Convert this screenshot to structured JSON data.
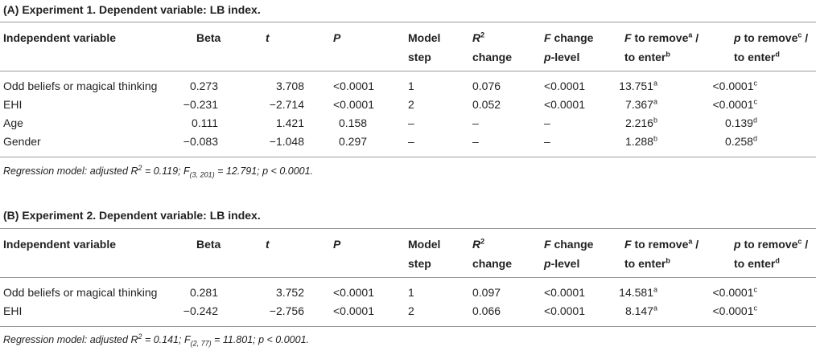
{
  "exp1": {
    "title": "(A) Experiment 1. Dependent variable: LB index.",
    "headers": {
      "iv": "Independent variable",
      "beta": "Beta",
      "t": "t",
      "p": "P",
      "model_step_1": "Model",
      "model_step_2": "step",
      "r2_sym": "R",
      "r2_exp": "2",
      "r2_line2": "change",
      "fchange_1a": "F",
      "fchange_1b": " change",
      "fchange_2a": "p",
      "fchange_2b": "-level",
      "ftr_1a": "F",
      "ftr_1b": " to remove",
      "ftr_sup_a": "a",
      "ftr_1c": " /",
      "ftr_2a": "to enter",
      "ftr_sup_b": "b",
      "ptr_1a": "p",
      "ptr_1b": " to remove",
      "ptr_sup_c": "c",
      "ptr_1c": " /",
      "ptr_2a": "to enter",
      "ptr_sup_d": "d"
    },
    "rows": [
      {
        "iv": "Odd beliefs or magical thinking",
        "beta": "0.273",
        "t": "3.708",
        "p": "<0.0001",
        "step": "1",
        "r2": "0.076",
        "fchg": "<0.0001",
        "ftr": "13.751",
        "ftr_sup": "a",
        "ptr": "<0.0001",
        "ptr_sup": "c"
      },
      {
        "iv": "EHI",
        "beta": "−0.231",
        "t": "−2.714",
        "p": "<0.0001",
        "step": "2",
        "r2": "0.052",
        "fchg": "<0.0001",
        "ftr": "7.367",
        "ftr_sup": "a",
        "ptr": "<0.0001",
        "ptr_sup": "c"
      },
      {
        "iv": "Age",
        "beta": "0.111",
        "t": "1.421",
        "p": "0.158",
        "step": "–",
        "r2": "–",
        "fchg": "–",
        "ftr": "2.216",
        "ftr_sup": "b",
        "ptr": "0.139",
        "ptr_sup": "d"
      },
      {
        "iv": "Gender",
        "beta": "−0.083",
        "t": "−1.048",
        "p": "0.297",
        "step": "–",
        "r2": "–",
        "fchg": "–",
        "ftr": "1.288",
        "ftr_sup": "b",
        "ptr": "0.258",
        "ptr_sup": "d"
      }
    ],
    "note": {
      "pre": "Regression model: adjusted ",
      "r": "R",
      "r_exp": "2",
      "mid": " = 0.119; F",
      "f_sub": "(3, 201)",
      "post": " = 12.791; p < 0.0001."
    }
  },
  "exp2": {
    "title": "(B) Experiment 2. Dependent variable: LB index.",
    "headers": {
      "iv": "Independent variable",
      "beta": "Beta",
      "t": "t",
      "p": "P",
      "model_step_1": "Model",
      "model_step_2": "step",
      "r2_sym": "R",
      "r2_exp": "2",
      "r2_line2": "change",
      "fchange_1a": "F",
      "fchange_1b": " change",
      "fchange_2a": "p",
      "fchange_2b": "-level",
      "ftr_1a": "F",
      "ftr_1b": " to remove",
      "ftr_sup_a": "a",
      "ftr_1c": " /",
      "ftr_2a": "to enter",
      "ftr_sup_b": "b",
      "ptr_1a": "p",
      "ptr_1b": " to remove",
      "ptr_sup_c": "c",
      "ptr_1c": " /",
      "ptr_2a": "to enter",
      "ptr_sup_d": "d"
    },
    "rows": [
      {
        "iv": "Odd beliefs or magical thinking",
        "beta": "0.281",
        "t": "3.752",
        "p": "<0.0001",
        "step": "1",
        "r2": "0.097",
        "fchg": "<0.0001",
        "ftr": "14.581",
        "ftr_sup": "a",
        "ptr": "<0.0001",
        "ptr_sup": "c"
      },
      {
        "iv": "EHI",
        "beta": "−0.242",
        "t": "−2.756",
        "p": "<0.0001",
        "step": "2",
        "r2": "0.066",
        "fchg": "<0.0001",
        "ftr": "8.147",
        "ftr_sup": "a",
        "ptr": "<0.0001",
        "ptr_sup": "c"
      }
    ],
    "note": {
      "pre": "Regression model: adjusted ",
      "r": "R",
      "r_exp": "2",
      "mid": " = 0.141; F",
      "f_sub": "(2, 77)",
      "post": " = 11.801; p < 0.0001."
    }
  }
}
